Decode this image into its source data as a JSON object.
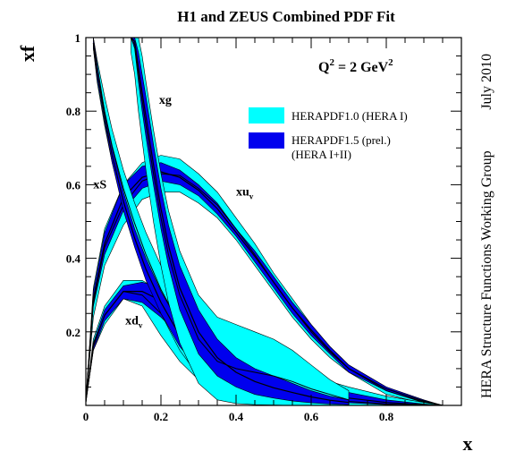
{
  "chart_data": {
    "type": "area",
    "title": "H1 and ZEUS Combined PDF Fit",
    "xlabel": "x",
    "ylabel": "xf",
    "xlim": [
      0,
      1
    ],
    "ylim": [
      0,
      1
    ],
    "x_ticks": [
      0,
      0.2,
      0.4,
      0.6,
      0.8
    ],
    "x_tick_labels": [
      "0",
      "0.2",
      "0.4",
      "0.6",
      "0.8"
    ],
    "y_ticks": [
      0.2,
      0.4,
      0.6,
      0.8,
      1
    ],
    "y_tick_labels": [
      "0.2",
      "0.4",
      "0.6",
      "0.8",
      "1"
    ],
    "grid": false,
    "legend_position": "top-right",
    "annotation_scale": {
      "main": "Q",
      "sup": "2",
      "mid": " = 2 GeV",
      "sup2": "2"
    },
    "side_labels": {
      "date": "July 2010",
      "group": "HERA Structure Functions Working Group"
    },
    "legend": [
      {
        "line1": "HERAPDF1.0 (HERA I)",
        "line2": "",
        "color": "#00ffff"
      },
      {
        "line1": "HERAPDF1.5 (prel.)",
        "line2": "(HERA I+II)",
        "color": "#0000ee"
      }
    ],
    "colors": {
      "v10": "#00ffff",
      "v15": "#0000ee",
      "central": "#000000"
    },
    "series": [
      {
        "name": "xu_v",
        "label_main": "xu",
        "label_sub": "v",
        "x": [
          0,
          0.02,
          0.05,
          0.1,
          0.15,
          0.2,
          0.25,
          0.3,
          0.35,
          0.4,
          0.45,
          0.5,
          0.55,
          0.6,
          0.65,
          0.7,
          0.8,
          0.9,
          0.95
        ],
        "v10_high": [
          0.01,
          0.32,
          0.48,
          0.6,
          0.66,
          0.68,
          0.67,
          0.63,
          0.58,
          0.51,
          0.44,
          0.36,
          0.29,
          0.22,
          0.16,
          0.11,
          0.05,
          0.01,
          0.0
        ],
        "v10_low": [
          0.01,
          0.24,
          0.38,
          0.49,
          0.56,
          0.58,
          0.58,
          0.55,
          0.51,
          0.45,
          0.38,
          0.31,
          0.24,
          0.18,
          0.13,
          0.09,
          0.03,
          0.005,
          0.0
        ],
        "v15_high": [
          0.01,
          0.31,
          0.47,
          0.6,
          0.65,
          0.66,
          0.64,
          0.6,
          0.55,
          0.48,
          0.42,
          0.35,
          0.28,
          0.22,
          0.16,
          0.11,
          0.05,
          0.015,
          0.0
        ],
        "v15_low": [
          0.01,
          0.27,
          0.41,
          0.53,
          0.59,
          0.61,
          0.6,
          0.57,
          0.52,
          0.46,
          0.39,
          0.32,
          0.25,
          0.19,
          0.14,
          0.09,
          0.04,
          0.01,
          0.0
        ],
        "central": [
          0.01,
          0.29,
          0.44,
          0.565,
          0.62,
          0.635,
          0.62,
          0.585,
          0.535,
          0.47,
          0.405,
          0.335,
          0.265,
          0.205,
          0.15,
          0.1,
          0.045,
          0.012,
          0.0
        ],
        "central_v10": [
          0.01,
          0.28,
          0.43,
          0.545,
          0.61,
          0.63,
          0.625,
          0.59,
          0.545,
          0.48,
          0.41,
          0.335,
          0.265,
          0.2,
          0.145,
          0.1,
          0.04,
          0.008,
          0.0
        ]
      },
      {
        "name": "xd_v",
        "label_main": "xd",
        "label_sub": "v",
        "x": [
          0,
          0.02,
          0.05,
          0.1,
          0.15,
          0.2,
          0.25,
          0.3,
          0.35,
          0.4,
          0.45,
          0.5,
          0.55,
          0.6,
          0.65,
          0.7,
          0.8,
          0.9,
          0.95
        ],
        "v10_high": [
          0.01,
          0.18,
          0.27,
          0.34,
          0.34,
          0.31,
          0.28,
          0.24,
          0.205,
          0.175,
          0.145,
          0.12,
          0.1,
          0.08,
          0.065,
          0.05,
          0.025,
          0.008,
          0.0
        ],
        "v10_low": [
          0.01,
          0.15,
          0.22,
          0.29,
          0.27,
          0.19,
          0.12,
          0.07,
          0.04,
          0.02,
          0.01,
          0.005,
          0.003,
          0.002,
          0.001,
          0.0,
          0.0,
          0.0,
          0.0
        ],
        "v15_high": [
          0.01,
          0.17,
          0.26,
          0.325,
          0.335,
          0.32,
          0.295,
          0.26,
          0.22,
          0.18,
          0.145,
          0.115,
          0.09,
          0.07,
          0.05,
          0.035,
          0.015,
          0.004,
          0.0
        ],
        "v15_low": [
          0.01,
          0.15,
          0.23,
          0.29,
          0.28,
          0.24,
          0.19,
          0.15,
          0.115,
          0.085,
          0.06,
          0.045,
          0.03,
          0.02,
          0.012,
          0.007,
          0.002,
          0.0,
          0.0
        ],
        "central": [
          0.01,
          0.16,
          0.245,
          0.31,
          0.31,
          0.285,
          0.25,
          0.21,
          0.17,
          0.135,
          0.105,
          0.08,
          0.06,
          0.045,
          0.03,
          0.02,
          0.008,
          0.002,
          0.0
        ],
        "central_v10": [
          0.01,
          0.165,
          0.245,
          0.31,
          0.3,
          0.25,
          0.2,
          0.155,
          0.12,
          0.09,
          0.065,
          0.05,
          0.035,
          0.025,
          0.017,
          0.011,
          0.004,
          0.001,
          0.0
        ]
      },
      {
        "name": "xS",
        "label_main": "xS",
        "label_sub": "",
        "x": [
          0.02,
          0.03,
          0.05,
          0.07,
          0.1,
          0.13,
          0.16,
          0.2,
          0.25,
          0.3,
          0.35,
          0.4,
          0.45,
          0.5,
          0.55,
          0.6
        ],
        "v10_high": [
          1.0,
          0.94,
          0.84,
          0.75,
          0.64,
          0.55,
          0.47,
          0.38,
          0.29,
          0.22,
          0.16,
          0.11,
          0.08,
          0.05,
          0.03,
          0.02
        ],
        "v10_low": [
          0.97,
          0.88,
          0.76,
          0.66,
          0.54,
          0.44,
          0.35,
          0.25,
          0.15,
          0.08,
          0.04,
          0.02,
          0.01,
          0.005,
          0.002,
          0.0
        ],
        "v15_high": [
          1.0,
          0.93,
          0.8,
          0.7,
          0.58,
          0.48,
          0.4,
          0.31,
          0.22,
          0.15,
          0.1,
          0.065,
          0.04,
          0.025,
          0.015,
          0.008
        ],
        "v15_low": [
          0.97,
          0.89,
          0.77,
          0.66,
          0.53,
          0.43,
          0.34,
          0.25,
          0.16,
          0.1,
          0.06,
          0.035,
          0.02,
          0.01,
          0.006,
          0.003
        ],
        "central": [
          0.985,
          0.91,
          0.785,
          0.68,
          0.555,
          0.455,
          0.37,
          0.28,
          0.19,
          0.125,
          0.08,
          0.05,
          0.03,
          0.018,
          0.01,
          0.005
        ],
        "central_v10": [
          0.985,
          0.91,
          0.8,
          0.705,
          0.59,
          0.495,
          0.41,
          0.315,
          0.22,
          0.15,
          0.1,
          0.065,
          0.045,
          0.028,
          0.016,
          0.01
        ]
      },
      {
        "name": "xg",
        "label_main": "xg",
        "label_sub": "",
        "x": [
          0.12,
          0.13,
          0.14,
          0.15,
          0.16,
          0.18,
          0.2,
          0.22,
          0.25,
          0.3,
          0.35,
          0.4,
          0.45,
          0.5,
          0.55,
          0.6,
          0.65,
          0.7
        ],
        "v10_high": [
          1.0,
          1.0,
          1.0,
          0.95,
          0.88,
          0.75,
          0.63,
          0.53,
          0.42,
          0.3,
          0.24,
          0.22,
          0.2,
          0.18,
          0.15,
          0.11,
          0.07,
          0.04
        ],
        "v10_low": [
          0.96,
          0.9,
          0.8,
          0.72,
          0.64,
          0.5,
          0.38,
          0.28,
          0.17,
          0.06,
          0.015,
          0.005,
          0.002,
          0.001,
          0.0,
          0.0,
          0.0,
          0.0
        ],
        "v15_high": [
          1.0,
          1.0,
          0.96,
          0.9,
          0.84,
          0.71,
          0.59,
          0.49,
          0.38,
          0.26,
          0.18,
          0.13,
          0.1,
          0.08,
          0.06,
          0.04,
          0.025,
          0.015
        ],
        "v15_low": [
          1.0,
          0.97,
          0.88,
          0.8,
          0.73,
          0.6,
          0.48,
          0.38,
          0.26,
          0.14,
          0.08,
          0.05,
          0.03,
          0.02,
          0.012,
          0.007,
          0.004,
          0.002
        ],
        "central": [
          1.0,
          0.99,
          0.92,
          0.85,
          0.785,
          0.655,
          0.535,
          0.435,
          0.32,
          0.2,
          0.13,
          0.09,
          0.065,
          0.048,
          0.035,
          0.023,
          0.014,
          0.008
        ],
        "central_v10": [
          1.0,
          0.98,
          0.9,
          0.83,
          0.76,
          0.63,
          0.51,
          0.41,
          0.3,
          0.18,
          0.12,
          0.1,
          0.09,
          0.08,
          0.065,
          0.045,
          0.03,
          0.015
        ]
      }
    ]
  }
}
